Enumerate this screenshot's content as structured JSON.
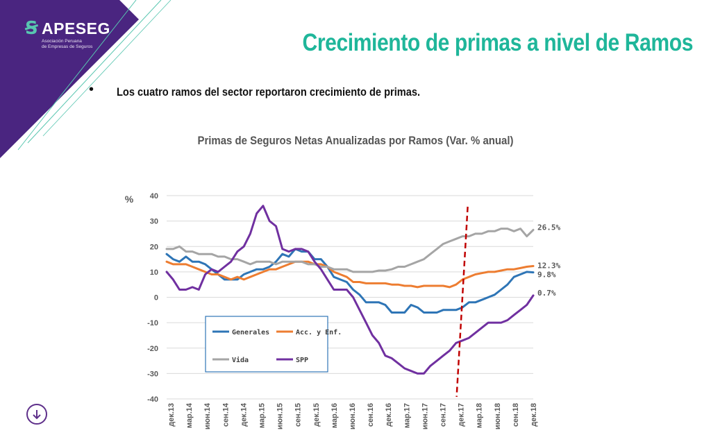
{
  "brand": {
    "name": "APESEG",
    "subtitle_line1": "Asociación Peruana",
    "subtitle_line2": "de Empresas de Seguros"
  },
  "colors": {
    "purple": "#4a2580",
    "teal": "#1fb69a",
    "generales": "#2e75b6",
    "acc_enf": "#ed7d31",
    "vida": "#a5a5a5",
    "spp": "#7030a0",
    "marker": "#c00000"
  },
  "slide": {
    "title": "Crecimiento de primas a nivel de Ramos",
    "bullet_symbol": "•",
    "bullet": "Los cuatro ramos del sector reportaron crecimiento de primas."
  },
  "chart_data": {
    "type": "line",
    "title": "Primas de Seguros Netas Anualizadas por Ramos (Var. % anual)",
    "ylabel": "%",
    "ylim": [
      -40,
      40
    ],
    "yticks": [
      40,
      30,
      20,
      10,
      0,
      -10,
      -20,
      -30,
      -40
    ],
    "grid": true,
    "legend": "bottom-left inside",
    "xtick_labels": [
      "дек.13",
      "мар.14",
      "июн.14",
      "сен.14",
      "дек.14",
      "мар.15",
      "июн.15",
      "сен.15",
      "дек.15",
      "мар.16",
      "июн.16",
      "сен.16",
      "дек.16",
      "мар.17",
      "июн.17",
      "сен.17",
      "дек.17",
      "мар.18",
      "июн.18",
      "сен.18",
      "дек.18"
    ],
    "marker_line_x": "дек.17",
    "series": [
      {
        "name": "Generales",
        "color_key": "generales",
        "end_label": "9.8%",
        "values": [
          17,
          15,
          14,
          16,
          14,
          14,
          13,
          11,
          9,
          7,
          7,
          7,
          9,
          10,
          11,
          11,
          12,
          14,
          17,
          16,
          19,
          18,
          18,
          15,
          15,
          12,
          8,
          7,
          6,
          3,
          1,
          -2,
          -2,
          -2,
          -3,
          -6,
          -6,
          -6,
          -3,
          -4,
          -6,
          -6,
          -6,
          -5,
          -5,
          -5,
          -4,
          -2,
          -2,
          -1,
          0,
          1,
          3,
          5,
          8,
          9,
          10,
          9.8
        ]
      },
      {
        "name": "Acc. y Enf.",
        "color_key": "acc_enf",
        "end_label": "12.3%",
        "values": [
          14,
          13,
          13,
          13,
          12,
          11,
          10,
          9,
          9,
          8,
          7,
          8,
          7,
          8,
          9,
          10,
          11,
          11,
          12,
          13,
          14,
          14,
          14,
          13,
          13,
          12,
          10,
          9,
          8,
          6,
          6,
          5.5,
          5.5,
          5.5,
          5.5,
          5,
          5,
          4.5,
          4.5,
          4,
          4.5,
          4.5,
          4.5,
          4.5,
          4,
          5,
          7,
          8,
          9,
          9.5,
          10,
          10,
          10.5,
          11,
          11,
          11.5,
          12,
          12.3
        ]
      },
      {
        "name": "Vida",
        "color_key": "vida",
        "end_label": "26.5%",
        "values": [
          19,
          19,
          20,
          18,
          18,
          17,
          17,
          17,
          16,
          16,
          15,
          15,
          14,
          13,
          14,
          14,
          14,
          13,
          14,
          14,
          14,
          14,
          13,
          13,
          12,
          12,
          11,
          11,
          11,
          10,
          10,
          10,
          10,
          10.5,
          10.5,
          11,
          12,
          12,
          13,
          14,
          15,
          17,
          19,
          21,
          22,
          23,
          24,
          24,
          25,
          25,
          26,
          26,
          27,
          27,
          26,
          27,
          24,
          26.5
        ]
      },
      {
        "name": "SPP",
        "color_key": "spp",
        "end_label": "0.7%",
        "values": [
          10,
          7,
          3,
          3,
          4,
          3,
          9,
          11,
          10,
          12,
          14,
          18,
          20,
          25,
          33,
          36,
          30,
          28,
          19,
          18,
          19,
          19,
          18,
          14,
          11,
          7,
          3,
          3,
          3,
          0,
          -5,
          -10,
          -15,
          -18,
          -23,
          -24,
          -26,
          -28,
          -29,
          -30,
          -30,
          -27,
          -25,
          -23,
          -21,
          -18,
          -17,
          -16,
          -14,
          -12,
          -10,
          -10,
          -10,
          -9,
          -7,
          -5,
          -3,
          0.7
        ]
      }
    ]
  }
}
